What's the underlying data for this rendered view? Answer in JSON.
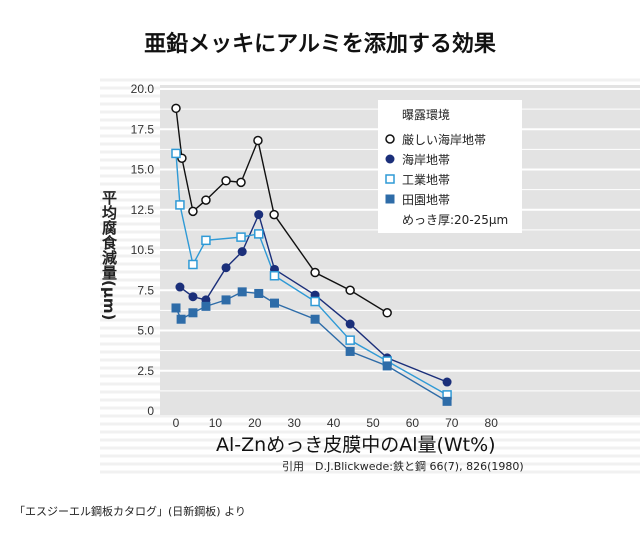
{
  "chart_data": {
    "type": "line",
    "title": "亜鉛メッキにアルミを添加する効果",
    "xlabel": "Al-Znめっき皮膜中のAl量(Wt%)",
    "ylabel": "平均腐食減量(μm)",
    "xlim": [
      0,
      80
    ],
    "ylim": [
      0,
      20
    ],
    "xticks": [
      "0",
      "10",
      "20",
      "30",
      "40",
      "50",
      "60",
      "70",
      "80"
    ],
    "yticks": [
      "0",
      "2.5",
      "5.0",
      "7.5",
      "10.5",
      "12.5",
      "15.0",
      "17.5",
      "20.0"
    ],
    "legend_title": "曝露環境",
    "legend_note": "めっき厚:20-25μm",
    "legend_position": "top-right",
    "grid": true,
    "series": [
      {
        "name": "厳しい海岸地帯",
        "marker": "open-circle",
        "color": "#111111",
        "x": [
          0,
          1.5,
          4.3,
          7.6,
          12.7,
          16.5,
          20.8,
          24.9,
          35.3,
          44.2,
          53.6
        ],
        "y": [
          18.8,
          15.7,
          12.4,
          13.1,
          14.3,
          14.2,
          16.8,
          12.2,
          8.6,
          7.5,
          6.1
        ]
      },
      {
        "name": "海岸地帯",
        "marker": "filled-circle",
        "color": "#1b2f7a",
        "x": [
          1,
          4.3,
          7.6,
          12.7,
          16.8,
          21,
          25,
          35.3,
          44.2,
          53.6,
          68.8
        ],
        "y": [
          7.7,
          7.1,
          6.9,
          8.9,
          9.9,
          12.2,
          8.8,
          7.2,
          5.4,
          3.3,
          1.8
        ]
      },
      {
        "name": "工業地帯",
        "marker": "open-square",
        "color": "#2f9ad6",
        "x": [
          0,
          1,
          4.3,
          7.6,
          16.5,
          21,
          25,
          35.3,
          44.2,
          53.6,
          68.8
        ],
        "y": [
          16,
          12.8,
          9.1,
          10.6,
          10.8,
          11.0,
          8.4,
          6.8,
          4.4,
          3.1,
          1.0
        ]
      },
      {
        "name": "田園地帯",
        "marker": "filled-square",
        "color": "#2e6ca8",
        "x": [
          0,
          1.3,
          4.3,
          7.6,
          12.7,
          16.8,
          21,
          25,
          35.3,
          44.2,
          53.6,
          68.8
        ],
        "y": [
          6.4,
          5.7,
          6.1,
          6.5,
          6.9,
          7.4,
          7.3,
          6.7,
          5.7,
          3.7,
          2.8,
          0.6
        ]
      }
    ]
  },
  "citation": "引用　D.J.Blickwede:鉄と鋼 66(7), 826(1980)",
  "source": "「エスジーエル鋼板カタログ」(日新鋼板) より"
}
